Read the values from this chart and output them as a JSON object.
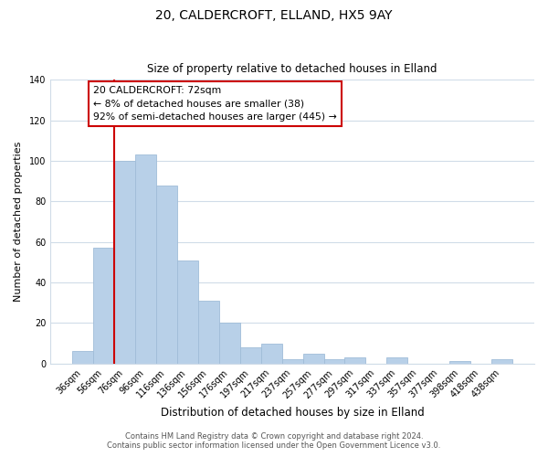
{
  "title1": "20, CALDERCROFT, ELLAND, HX5 9AY",
  "title2": "Size of property relative to detached houses in Elland",
  "xlabel": "Distribution of detached houses by size in Elland",
  "ylabel": "Number of detached properties",
  "categories": [
    "36sqm",
    "56sqm",
    "76sqm",
    "96sqm",
    "116sqm",
    "136sqm",
    "156sqm",
    "176sqm",
    "197sqm",
    "217sqm",
    "237sqm",
    "257sqm",
    "277sqm",
    "297sqm",
    "317sqm",
    "337sqm",
    "357sqm",
    "377sqm",
    "398sqm",
    "418sqm",
    "438sqm"
  ],
  "values": [
    6,
    57,
    100,
    103,
    88,
    51,
    31,
    20,
    8,
    10,
    2,
    5,
    2,
    3,
    0,
    3,
    0,
    0,
    1,
    0,
    2
  ],
  "bar_color": "#b8d0e8",
  "bar_edge_color": "#a0bcd8",
  "vline_color": "#cc0000",
  "vline_index": 2,
  "ylim": [
    0,
    140
  ],
  "yticks": [
    0,
    20,
    40,
    60,
    80,
    100,
    120,
    140
  ],
  "annotation_title": "20 CALDERCROFT: 72sqm",
  "annotation_line1": "← 8% of detached houses are smaller (38)",
  "annotation_line2": "92% of semi-detached houses are larger (445) →",
  "annotation_box_color": "#ffffff",
  "annotation_box_edge": "#cc0000",
  "footer1": "Contains HM Land Registry data © Crown copyright and database right 2024.",
  "footer2": "Contains public sector information licensed under the Open Government Licence v3.0.",
  "background_color": "#ffffff",
  "grid_color": "#d0dce8",
  "title1_fontsize": 10,
  "title2_fontsize": 8.5,
  "xlabel_fontsize": 8.5,
  "ylabel_fontsize": 8,
  "tick_fontsize": 7,
  "annotation_fontsize": 7.8,
  "footer_fontsize": 6
}
